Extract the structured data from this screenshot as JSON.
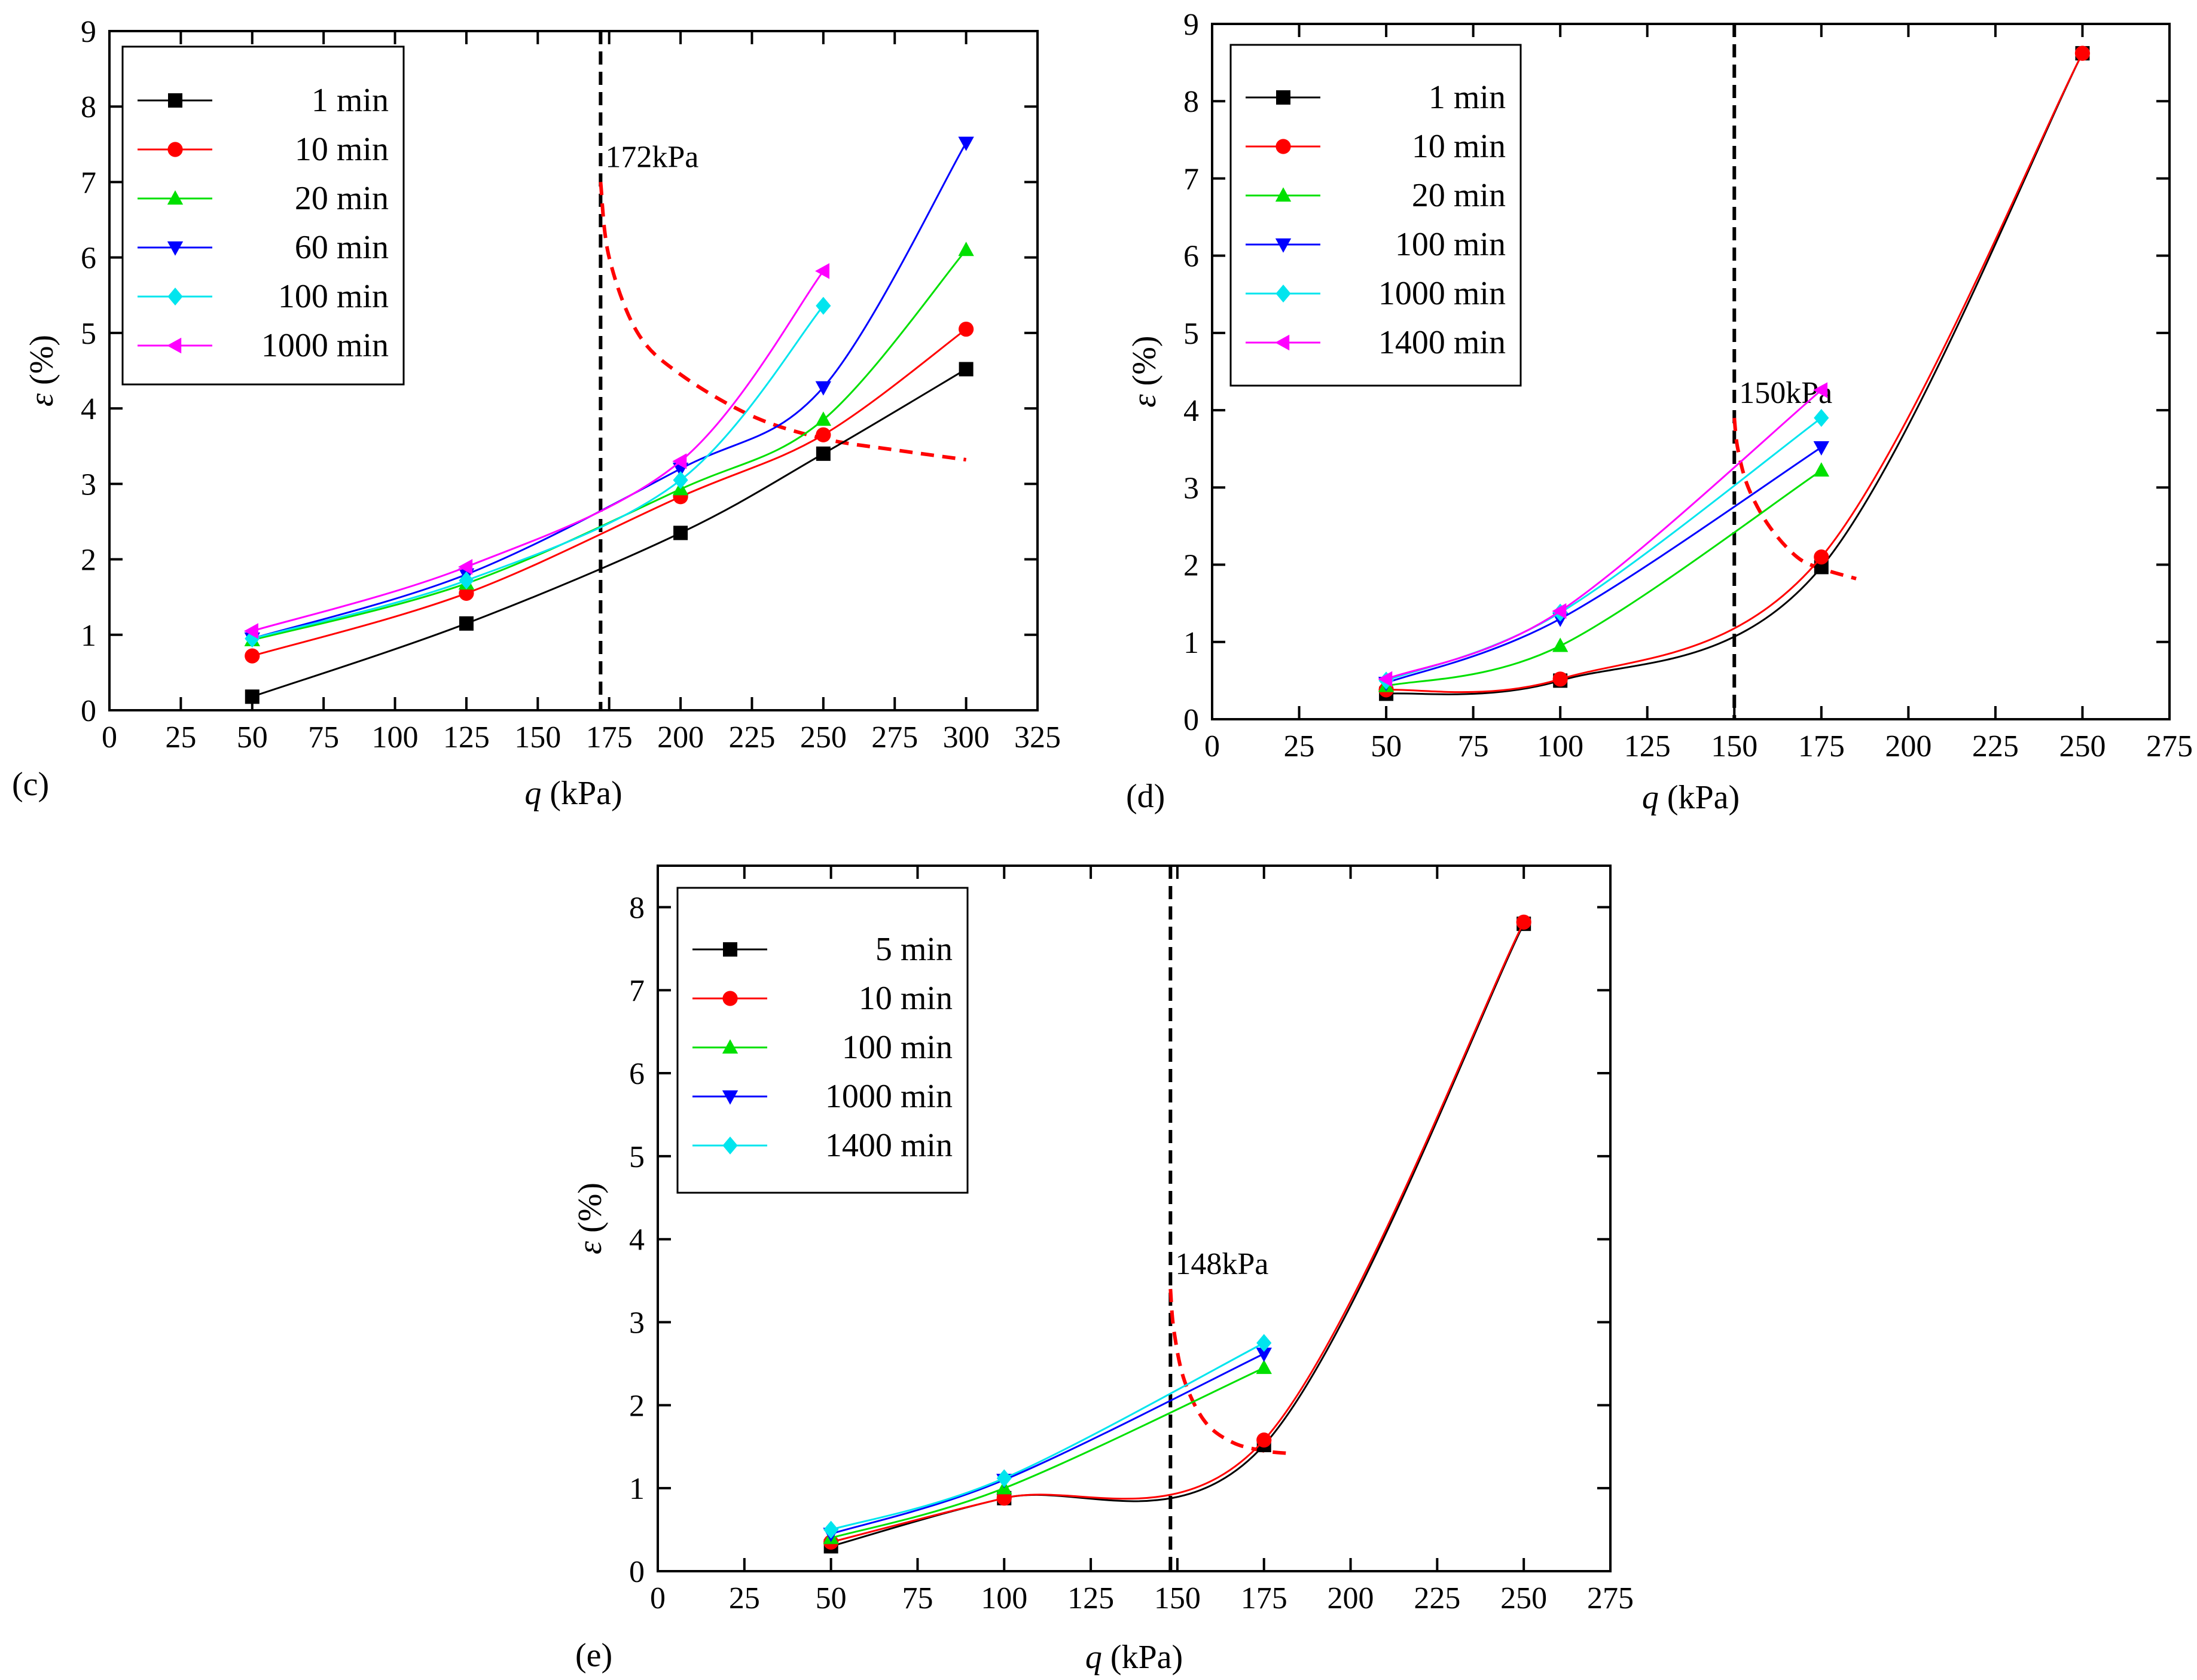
{
  "chart_data": [
    {
      "panel_label": "(c)",
      "type": "line",
      "xlabel_var": "q",
      "xlabel_unit": " (kPa)",
      "ylabel_var": "ε",
      "ylabel_unit": " (%)",
      "xlim": [
        0,
        325
      ],
      "ylim": [
        0,
        9
      ],
      "xticks": [
        0,
        25,
        50,
        75,
        100,
        125,
        150,
        175,
        200,
        225,
        250,
        275,
        300,
        325
      ],
      "yticks": [
        0,
        1,
        2,
        3,
        4,
        5,
        6,
        7,
        8,
        9
      ],
      "threshold": {
        "x": 172,
        "label": "172kPa",
        "curve": [
          [
            172,
            7.0
          ],
          [
            175,
            6.0
          ],
          [
            185,
            5.0
          ],
          [
            200,
            4.45
          ],
          [
            225,
            3.9
          ],
          [
            250,
            3.6
          ],
          [
            275,
            3.45
          ],
          [
            300,
            3.32
          ]
        ]
      },
      "series": [
        {
          "name": "1 min",
          "color": "#000000",
          "marker": "square",
          "x": [
            50,
            125,
            200,
            250,
            300
          ],
          "values": [
            0.18,
            1.15,
            2.35,
            3.4,
            4.52
          ]
        },
        {
          "name": "10 min",
          "color": "#ff0000",
          "marker": "circle",
          "x": [
            50,
            125,
            200,
            250,
            300
          ],
          "values": [
            0.72,
            1.55,
            2.83,
            3.65,
            5.05
          ]
        },
        {
          "name": "20 min",
          "color": "#00e000",
          "marker": "triangle-up",
          "x": [
            50,
            125,
            200,
            250,
            300
          ],
          "values": [
            0.93,
            1.68,
            2.93,
            3.85,
            6.1
          ]
        },
        {
          "name": "60 min",
          "color": "#0000ff",
          "marker": "triangle-down",
          "x": [
            50,
            125,
            200,
            250,
            300
          ],
          "values": [
            0.95,
            1.8,
            3.2,
            4.28,
            7.52
          ]
        },
        {
          "name": "100 min",
          "color": "#00e5ee",
          "marker": "diamond",
          "x": [
            50,
            125,
            200,
            250
          ],
          "values": [
            0.95,
            1.72,
            3.05,
            5.36
          ]
        },
        {
          "name": "1000 min",
          "color": "#ff00ff",
          "marker": "triangle-left",
          "x": [
            50,
            125,
            200,
            250
          ],
          "values": [
            1.05,
            1.9,
            3.3,
            5.82
          ]
        }
      ]
    },
    {
      "panel_label": "(d)",
      "type": "line",
      "xlabel_var": "q",
      "xlabel_unit": " (kPa)",
      "ylabel_var": "ε",
      "ylabel_unit": " (%)",
      "xlim": [
        0,
        275
      ],
      "ylim": [
        0,
        9
      ],
      "xticks": [
        0,
        25,
        50,
        75,
        100,
        125,
        150,
        175,
        200,
        225,
        250,
        275
      ],
      "yticks": [
        0,
        1,
        2,
        3,
        4,
        5,
        6,
        7,
        8,
        9
      ],
      "threshold": {
        "x": 150,
        "label": "150kPa",
        "curve": [
          [
            150,
            3.9
          ],
          [
            151,
            3.5
          ],
          [
            154,
            3.0
          ],
          [
            160,
            2.5
          ],
          [
            168,
            2.1
          ],
          [
            175,
            1.95
          ],
          [
            185,
            1.82
          ]
        ]
      },
      "series": [
        {
          "name": "1 min",
          "color": "#000000",
          "marker": "square",
          "x": [
            50,
            100,
            175,
            250
          ],
          "values": [
            0.33,
            0.5,
            1.97,
            8.62
          ]
        },
        {
          "name": "10 min",
          "color": "#ff0000",
          "marker": "circle",
          "x": [
            50,
            100,
            175,
            250
          ],
          "values": [
            0.38,
            0.52,
            2.1,
            8.62
          ]
        },
        {
          "name": "20 min",
          "color": "#00e000",
          "marker": "triangle-up",
          "x": [
            50,
            100,
            175
          ],
          "values": [
            0.43,
            0.95,
            3.22
          ]
        },
        {
          "name": "100 min",
          "color": "#0000ff",
          "marker": "triangle-down",
          "x": [
            50,
            100,
            175
          ],
          "values": [
            0.47,
            1.3,
            3.52
          ]
        },
        {
          "name": "1000 min",
          "color": "#00e5ee",
          "marker": "diamond",
          "x": [
            50,
            100,
            175
          ],
          "values": [
            0.5,
            1.38,
            3.9
          ]
        },
        {
          "name": "1400 min",
          "color": "#ff00ff",
          "marker": "triangle-left",
          "x": [
            50,
            100,
            175
          ],
          "values": [
            0.52,
            1.4,
            4.26
          ]
        }
      ]
    },
    {
      "panel_label": "(e)",
      "type": "line",
      "xlabel_var": "q",
      "xlabel_unit": " (kPa)",
      "ylabel_var": "ε",
      "ylabel_unit": " (%)",
      "xlim": [
        0,
        275
      ],
      "ylim": [
        0,
        8.5
      ],
      "xticks": [
        0,
        25,
        50,
        75,
        100,
        125,
        150,
        175,
        200,
        225,
        250,
        275
      ],
      "yticks": [
        0,
        1,
        2,
        3,
        4,
        5,
        6,
        7,
        8
      ],
      "threshold": {
        "x": 148,
        "label": "148kPa",
        "curve": [
          [
            148,
            3.4
          ],
          [
            149,
            2.9
          ],
          [
            152,
            2.3
          ],
          [
            158,
            1.8
          ],
          [
            166,
            1.55
          ],
          [
            175,
            1.45
          ],
          [
            182,
            1.42
          ]
        ]
      },
      "series": [
        {
          "name": "5 min",
          "color": "#000000",
          "marker": "square",
          "x": [
            50,
            100,
            175,
            250
          ],
          "values": [
            0.3,
            0.88,
            1.52,
            7.8
          ]
        },
        {
          "name": "10 min",
          "color": "#ff0000",
          "marker": "circle",
          "x": [
            50,
            100,
            175,
            250
          ],
          "values": [
            0.35,
            0.88,
            1.58,
            7.82
          ]
        },
        {
          "name": "100 min",
          "color": "#00e000",
          "marker": "triangle-up",
          "x": [
            50,
            100,
            175
          ],
          "values": [
            0.4,
            1.0,
            2.45
          ]
        },
        {
          "name": "1000 min",
          "color": "#0000ff",
          "marker": "triangle-down",
          "x": [
            50,
            100,
            175
          ],
          "values": [
            0.45,
            1.1,
            2.62
          ]
        },
        {
          "name": "1400 min",
          "color": "#00e5ee",
          "marker": "diamond",
          "x": [
            50,
            100,
            175
          ],
          "values": [
            0.5,
            1.12,
            2.75
          ]
        }
      ]
    }
  ]
}
